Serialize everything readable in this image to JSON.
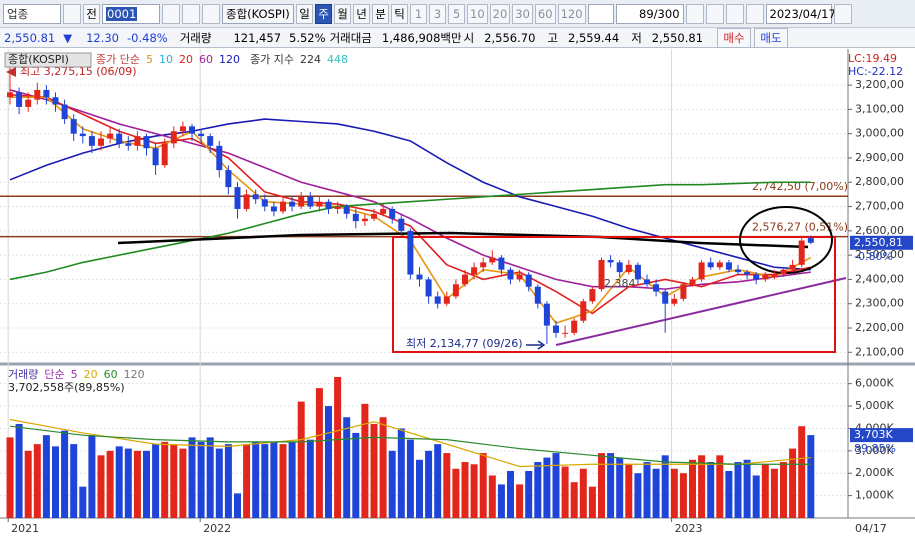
{
  "toolbar": {
    "market": "업종",
    "prefix": "전",
    "code": "0001",
    "name": "종합(KOSPI)",
    "periods": [
      "일",
      "주",
      "월",
      "년",
      "분",
      "틱"
    ],
    "intervals": [
      "1",
      "3",
      "5",
      "10",
      "20",
      "30",
      "60",
      "120"
    ],
    "count": "89/300",
    "date": "2023/04/17"
  },
  "info": {
    "price": "2,550.81",
    "arrow": "▼",
    "change": "12.30",
    "change_pct": "-0.48%",
    "volume_label": "거래량",
    "volume": "121,457",
    "volume_pct": "5.52%",
    "amount_label": "거래대금",
    "amount": "1,486,908백만",
    "open_label": "시",
    "open": "2,556.70",
    "high_label": "고",
    "high": "2,559.44",
    "low_label": "저",
    "low": "2,550.81",
    "buy": "매수",
    "sell": "매도"
  },
  "chart_data": [
    {
      "type": "candlestick",
      "title": "종합(KOSPI)",
      "ma_group": "종가 단순",
      "ma_periods": [
        {
          "label": "5",
          "color": "#e8940e"
        },
        {
          "label": "10",
          "color": "#22aee0"
        },
        {
          "label": "20",
          "color": "#e02020"
        },
        {
          "label": "60",
          "color": "#a0209a"
        },
        {
          "label": "120",
          "color": "#1a1ab4"
        }
      ],
      "ema_group": "종가 지수",
      "ema_periods": [
        {
          "label": "224",
          "color": "#333333"
        },
        {
          "label": "448",
          "color": "#30c0c0"
        }
      ],
      "up_color": "#e3261c",
      "down_color": "#1f44d8",
      "candles": [
        [
          3150,
          3275.15,
          3120,
          3170
        ],
        [
          3170,
          3190,
          3080,
          3110
        ],
        [
          3110,
          3170,
          3090,
          3140
        ],
        [
          3140,
          3210,
          3120,
          3180
        ],
        [
          3180,
          3200,
          3120,
          3150
        ],
        [
          3150,
          3170,
          3090,
          3120
        ],
        [
          3120,
          3140,
          3040,
          3060
        ],
        [
          3060,
          3080,
          2970,
          3000
        ],
        [
          3000,
          3030,
          2960,
          2990
        ],
        [
          2990,
          3010,
          2920,
          2950
        ],
        [
          2950,
          3010,
          2930,
          2980
        ],
        [
          2980,
          3030,
          2960,
          3000
        ],
        [
          3000,
          3020,
          2940,
          2960
        ],
        [
          2960,
          2990,
          2930,
          2950
        ],
        [
          2950,
          3010,
          2930,
          2990
        ],
        [
          2990,
          3000,
          2910,
          2940
        ],
        [
          2940,
          2960,
          2830,
          2870
        ],
        [
          2870,
          2980,
          2860,
          2960
        ],
        [
          2960,
          3030,
          2940,
          3010
        ],
        [
          3010,
          3050,
          2990,
          3030
        ],
        [
          3030,
          3040,
          2970,
          3000
        ],
        [
          3000,
          3020,
          2960,
          2990
        ],
        [
          2990,
          3000,
          2920,
          2950
        ],
        [
          2950,
          2970,
          2820,
          2850
        ],
        [
          2850,
          2870,
          2750,
          2780
        ],
        [
          2780,
          2800,
          2650,
          2690
        ],
        [
          2690,
          2770,
          2680,
          2750
        ],
        [
          2750,
          2770,
          2710,
          2730
        ],
        [
          2730,
          2750,
          2680,
          2700
        ],
        [
          2700,
          2720,
          2660,
          2680
        ],
        [
          2680,
          2740,
          2670,
          2720
        ],
        [
          2720,
          2740,
          2680,
          2700
        ],
        [
          2700,
          2760,
          2690,
          2740
        ],
        [
          2740,
          2760,
          2690,
          2700
        ],
        [
          2700,
          2740,
          2680,
          2720
        ],
        [
          2720,
          2730,
          2670,
          2690
        ],
        [
          2690,
          2720,
          2670,
          2700
        ],
        [
          2700,
          2710,
          2650,
          2670
        ],
        [
          2670,
          2690,
          2610,
          2640
        ],
        [
          2640,
          2670,
          2620,
          2650
        ],
        [
          2650,
          2690,
          2640,
          2670
        ],
        [
          2670,
          2710,
          2660,
          2690
        ],
        [
          2690,
          2700,
          2630,
          2650
        ],
        [
          2650,
          2670,
          2580,
          2600
        ],
        [
          2600,
          2610,
          2400,
          2420
        ],
        [
          2420,
          2450,
          2370,
          2400
        ],
        [
          2400,
          2410,
          2300,
          2330
        ],
        [
          2330,
          2350,
          2280,
          2300
        ],
        [
          2300,
          2350,
          2290,
          2330
        ],
        [
          2330,
          2400,
          2320,
          2380
        ],
        [
          2380,
          2440,
          2370,
          2420
        ],
        [
          2420,
          2470,
          2400,
          2450
        ],
        [
          2450,
          2490,
          2430,
          2470
        ],
        [
          2470,
          2520,
          2460,
          2490
        ],
        [
          2490,
          2500,
          2420,
          2440
        ],
        [
          2440,
          2450,
          2380,
          2400
        ],
        [
          2400,
          2440,
          2390,
          2420
        ],
        [
          2420,
          2430,
          2350,
          2370
        ],
        [
          2370,
          2380,
          2280,
          2300
        ],
        [
          2300,
          2310,
          2134.77,
          2210
        ],
        [
          2210,
          2230,
          2160,
          2180
        ],
        [
          2180,
          2210,
          2160,
          2180
        ],
        [
          2180,
          2240,
          2170,
          2230
        ],
        [
          2230,
          2320,
          2220,
          2310
        ],
        [
          2310,
          2370,
          2300,
          2360
        ],
        [
          2360,
          2490,
          2350,
          2480
        ],
        [
          2480,
          2500,
          2450,
          2470
        ],
        [
          2470,
          2480,
          2410,
          2430
        ],
        [
          2430,
          2480,
          2420,
          2460
        ],
        [
          2460,
          2470,
          2380,
          2400
        ],
        [
          2400,
          2420,
          2370,
          2380
        ],
        [
          2380,
          2400,
          2330,
          2350
        ],
        [
          2350,
          2360,
          2180,
          2300
        ],
        [
          2300,
          2340,
          2290,
          2320
        ],
        [
          2320,
          2390,
          2310,
          2380
        ],
        [
          2380,
          2410,
          2370,
          2400
        ],
        [
          2400,
          2480,
          2390,
          2470
        ],
        [
          2470,
          2490,
          2440,
          2450
        ],
        [
          2450,
          2480,
          2440,
          2470
        ],
        [
          2470,
          2480,
          2430,
          2440
        ],
        [
          2440,
          2460,
          2420,
          2430
        ],
        [
          2430,
          2440,
          2400,
          2420
        ],
        [
          2420,
          2430,
          2380,
          2400
        ],
        [
          2400,
          2430,
          2390,
          2420
        ],
        [
          2410,
          2440,
          2400,
          2420
        ],
        [
          2420,
          2450,
          2410,
          2440
        ],
        [
          2440,
          2480,
          2430,
          2460
        ],
        [
          2460,
          2580,
          2450,
          2560
        ],
        [
          2570,
          2580,
          2545,
          2550.81
        ]
      ],
      "lines": [
        {
          "name": "120",
          "color": "#1a1ab4",
          "x": [
            0,
            4,
            8,
            12,
            16,
            20,
            24,
            28,
            32,
            36,
            40,
            44,
            48,
            52,
            56,
            60,
            64,
            68,
            72,
            76,
            80,
            84,
            88
          ],
          "values": [
            2810,
            2870,
            2920,
            2960,
            2990,
            3010,
            3040,
            3060,
            3050,
            3040,
            3010,
            2970,
            2880,
            2800,
            2740,
            2700,
            2660,
            2610,
            2570,
            2530,
            2490,
            2450,
            2440
          ]
        },
        {
          "name": "60",
          "color": "#a0209a",
          "x": [
            0,
            4,
            8,
            12,
            16,
            20,
            24,
            28,
            32,
            36,
            40,
            44,
            48,
            52,
            56,
            60,
            64,
            68,
            72,
            76,
            80,
            84,
            88
          ],
          "values": [
            3180,
            3140,
            3090,
            3040,
            3000,
            2960,
            2920,
            2860,
            2800,
            2760,
            2720,
            2650,
            2570,
            2500,
            2450,
            2400,
            2370,
            2370,
            2360,
            2380,
            2390,
            2410,
            2430
          ]
        },
        {
          "name": "20",
          "color": "#e02020",
          "x": [
            0,
            4,
            8,
            12,
            16,
            20,
            24,
            28,
            32,
            36,
            40,
            44,
            48,
            52,
            56,
            60,
            64,
            68,
            72,
            76,
            80,
            84,
            88
          ],
          "values": [
            3160,
            3150,
            3080,
            3010,
            2960,
            2980,
            2900,
            2760,
            2720,
            2710,
            2680,
            2620,
            2460,
            2400,
            2430,
            2350,
            2260,
            2370,
            2400,
            2370,
            2420,
            2420,
            2450
          ]
        },
        {
          "name": "5",
          "color": "#e8940e",
          "x": [
            0,
            4,
            8,
            12,
            16,
            20,
            24,
            28,
            32,
            36,
            40,
            44,
            48,
            52,
            56,
            60,
            64,
            68,
            72,
            76,
            80,
            84,
            88
          ],
          "values": [
            3150,
            3150,
            3020,
            2970,
            2940,
            3010,
            2850,
            2720,
            2710,
            2700,
            2660,
            2560,
            2320,
            2440,
            2420,
            2220,
            2270,
            2450,
            2330,
            2410,
            2440,
            2410,
            2490
          ]
        },
        {
          "name": "224",
          "color": "#1f8a1f",
          "x": [
            0,
            4,
            8,
            12,
            16,
            20,
            24,
            28,
            32,
            36,
            40,
            44,
            48,
            52,
            56,
            60,
            64,
            68,
            72,
            76,
            80,
            84,
            88
          ],
          "values": [
            2400,
            2430,
            2470,
            2500,
            2530,
            2560,
            2590,
            2630,
            2670,
            2700,
            2710,
            2720,
            2730,
            2740,
            2750,
            2760,
            2770,
            2780,
            2790,
            2790,
            2795,
            2800,
            2800
          ]
        }
      ],
      "hlines": [
        {
          "value": 2742.5,
          "label": "2,742,50 (7,00%)"
        },
        {
          "value": 2576.27,
          "label": "2,576,27 (0,51%)"
        }
      ],
      "annotations": {
        "high": "최고 3,275,15 (06/09)",
        "low": "최저 2,134,77 (09/26)",
        "mid": "2,384"
      },
      "lc": "LC:19.49",
      "hc": "HC:-22.12",
      "last": {
        "value": 2550.81,
        "label": "2,550,81"
      },
      "last_pct": "-0.80%",
      "ylim": [
        2060,
        3295
      ],
      "yticks": [
        {
          "value": 2100,
          "label": "2,100,00"
        },
        {
          "value": 2200,
          "label": "2,200,00"
        },
        {
          "value": 2300,
          "label": "2,300,00"
        },
        {
          "value": 2400,
          "label": "2,400,00"
        },
        {
          "value": 2500,
          "label": "2,500,00"
        },
        {
          "value": 2600,
          "label": "2,600,00"
        },
        {
          "value": 2700,
          "label": "2,700,00"
        },
        {
          "value": 2800,
          "label": "2,800,00"
        },
        {
          "value": 2900,
          "label": "2,900,00"
        },
        {
          "value": 3000,
          "label": "3,000,00"
        },
        {
          "value": 3100,
          "label": "3,100,00"
        },
        {
          "value": 3200,
          "label": "3,200,00"
        }
      ],
      "grid": true,
      "x_labels": [
        {
          "value": -0.2,
          "label": "2021"
        },
        {
          "value": 20.9,
          "label": "2022"
        },
        {
          "value": 72.7,
          "label": "2023"
        }
      ],
      "last_date": "04/17"
    },
    {
      "type": "bar",
      "title": "거래량",
      "ma_group": "단순",
      "ma_periods": [
        {
          "label": "5",
          "color": "#9a30b0"
        },
        {
          "label": "20",
          "color": "#d8a800"
        },
        {
          "label": "60",
          "color": "#2c8a2c"
        },
        {
          "label": "120",
          "color": "#777777"
        }
      ],
      "subtitle": "3,702,558주(89,85%)",
      "values": [
        3600,
        4200,
        3000,
        3300,
        3700,
        3200,
        3900,
        3300,
        1400,
        3700,
        2800,
        3000,
        3200,
        3100,
        3000,
        3000,
        3300,
        3400,
        3300,
        3100,
        3600,
        3400,
        3600,
        3100,
        3300,
        1100,
        3300,
        3400,
        3300,
        3400,
        3300,
        3400,
        5200,
        3500,
        5800,
        5000,
        6300,
        4500,
        3800,
        5100,
        4200,
        4500,
        3000,
        4000,
        3500,
        2600,
        3000,
        3300,
        2900,
        2200,
        2500,
        2400,
        2900,
        1900,
        1500,
        2100,
        1500,
        2100,
        2500,
        2700,
        2900,
        2300,
        1600,
        2200,
        1400,
        2900,
        2900,
        2700,
        2400,
        2000,
        2500,
        2200,
        2800,
        2200,
        2000,
        2600,
        2800,
        2500,
        2800,
        2100,
        2500,
        2600,
        1900,
        2400,
        2200,
        2500,
        3100,
        4100,
        3702.558
      ],
      "lines": [
        {
          "name": "20",
          "color": "#d8a800",
          "x": [
            0,
            8,
            16,
            24,
            32,
            40,
            48,
            56,
            64,
            72,
            80,
            88
          ],
          "values": [
            4400,
            3800,
            3300,
            3200,
            3500,
            4300,
            3300,
            2300,
            2400,
            2400,
            2400,
            2700
          ]
        },
        {
          "name": "60",
          "color": "#2c8a2c",
          "x": [
            0,
            8,
            16,
            24,
            32,
            40,
            48,
            56,
            64,
            72,
            80,
            88
          ],
          "values": [
            4100,
            3700,
            3500,
            3400,
            3400,
            3600,
            3500,
            3100,
            2800,
            2500,
            2400,
            2400
          ]
        }
      ],
      "last": {
        "value": 3702.558,
        "label": "3,703K"
      },
      "last_pct": "89.85%",
      "ylim": [
        0,
        6700
      ],
      "yticks": [
        {
          "value": 1000,
          "label": "1,000K"
        },
        {
          "value": 2000,
          "label": "2,000K"
        },
        {
          "value": 3000,
          "label": "3,000K"
        },
        {
          "value": 4000,
          "label": "4,000K"
        },
        {
          "value": 5000,
          "label": "5,000K"
        },
        {
          "value": 6000,
          "label": "6,000K"
        }
      ],
      "grid": true
    }
  ]
}
